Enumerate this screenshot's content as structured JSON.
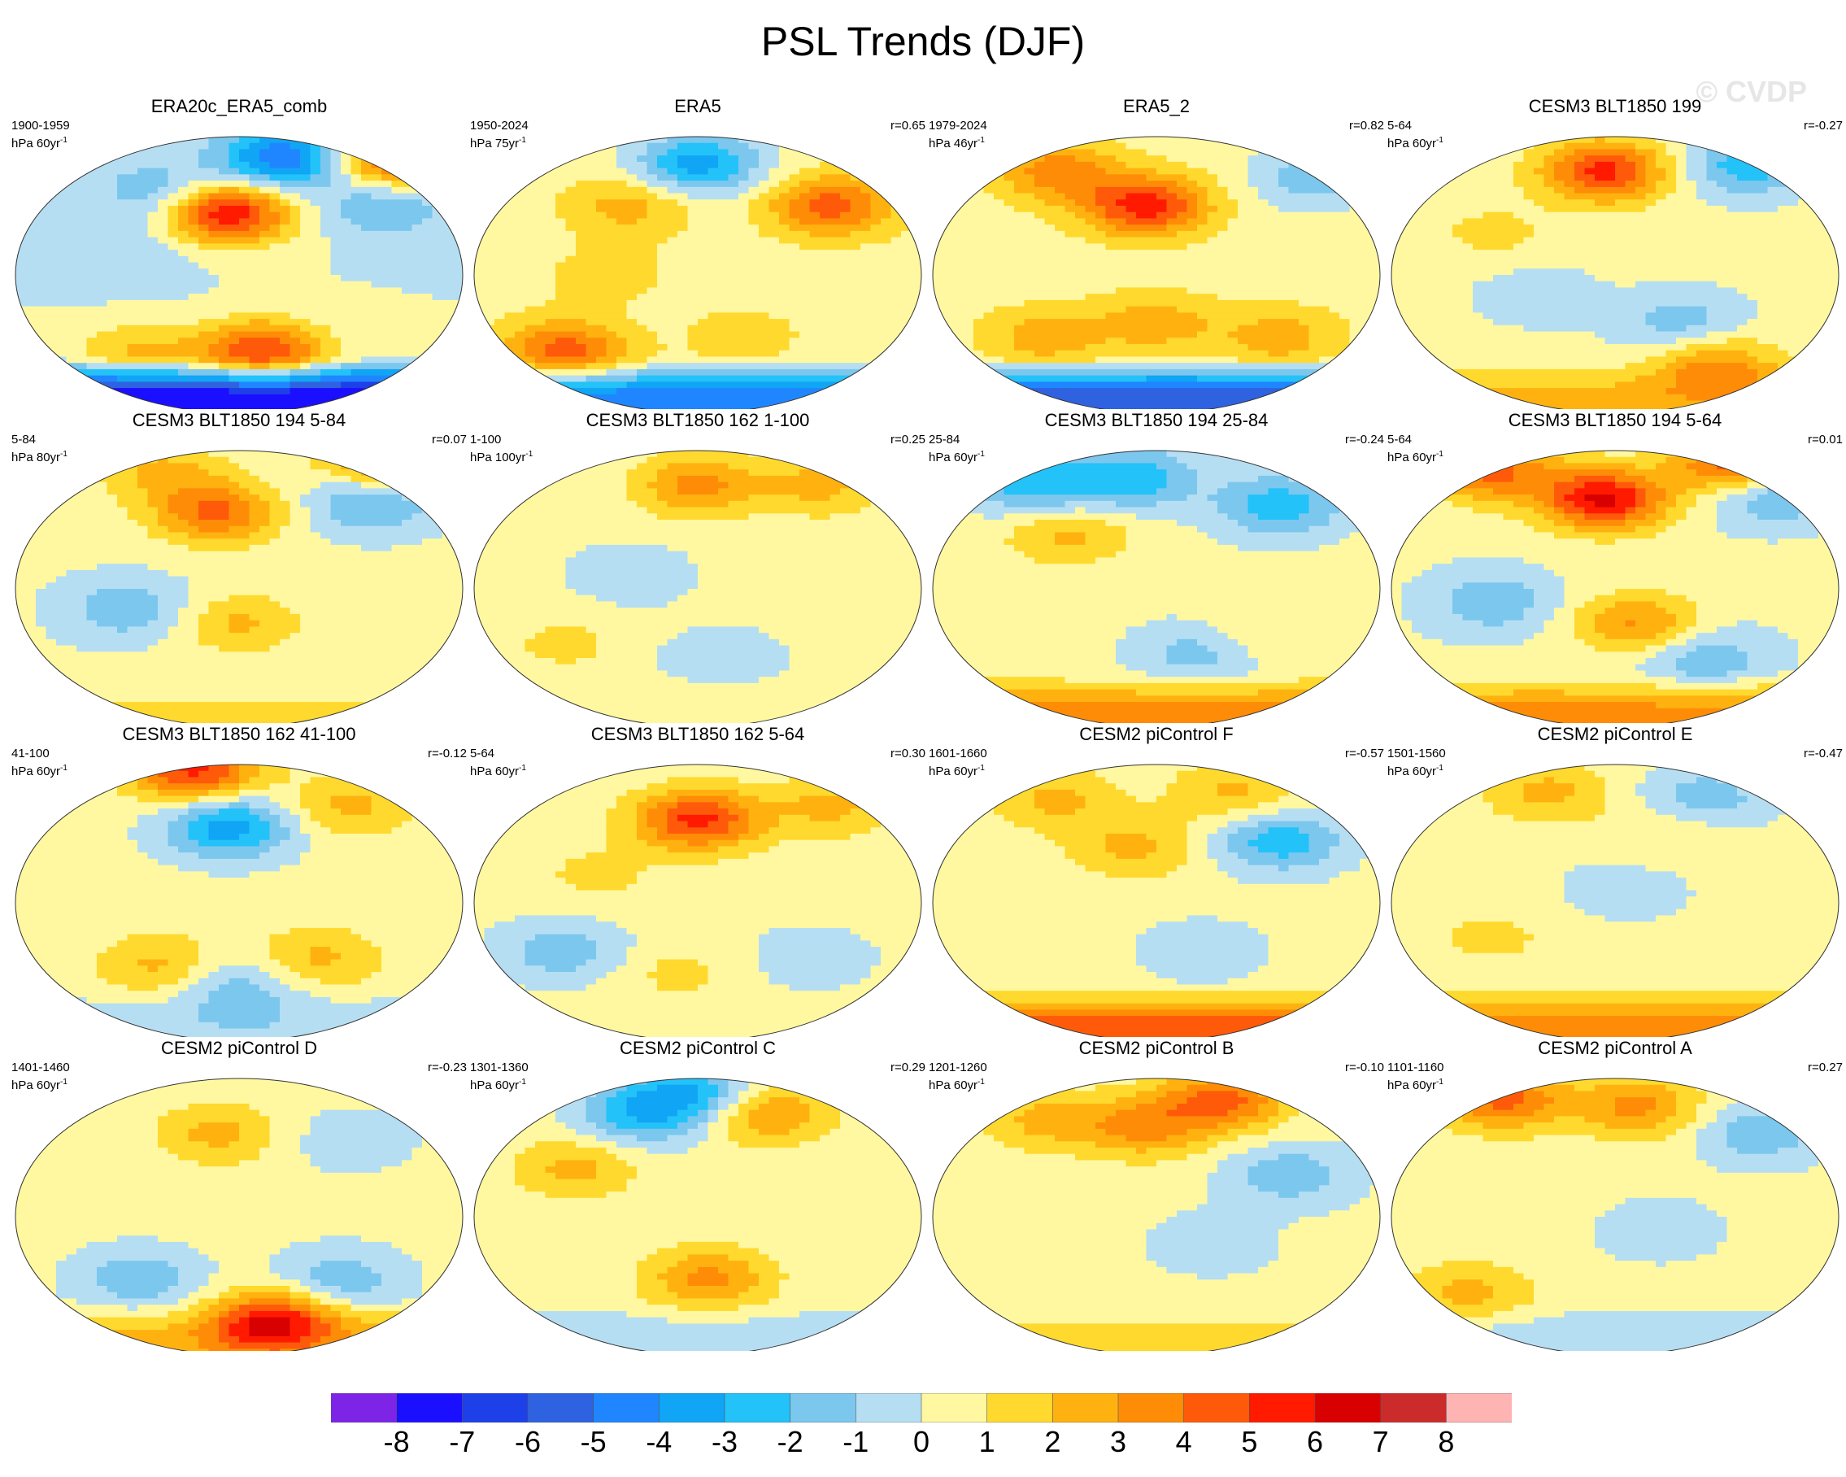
{
  "title": "PSL Trends (DJF)",
  "watermark": "© CVDP",
  "colorbar": {
    "colors": [
      "#7d24e6",
      "#1b0fff",
      "#1e40e8",
      "#2f62e0",
      "#1f86ff",
      "#11a5f5",
      "#23c2f9",
      "#7cc7ee",
      "#b6def3",
      "#fff8a0",
      "#ffd92e",
      "#ffb20f",
      "#ff8c06",
      "#ff5a09",
      "#ff1a00",
      "#d80000",
      "#cc2b2b",
      "#ffb4b4"
    ],
    "ticks": [
      "-8",
      "-7",
      "-6",
      "-5",
      "-4",
      "-3",
      "-2",
      "-1",
      "0",
      "1",
      "2",
      "3",
      "4",
      "5",
      "6",
      "7",
      "8"
    ]
  },
  "chart_data": {
    "type": "heatmap",
    "title": "PSL Trends (DJF)",
    "variable": "PSL",
    "season": "DJF",
    "colorbar_levels": [
      -8,
      -7,
      -6,
      -5,
      -4,
      -3,
      -2,
      -1,
      0,
      1,
      2,
      3,
      4,
      5,
      6,
      7,
      8
    ],
    "panels": [
      {
        "name": "ERA20c_ERA5_comb",
        "period": "1900-1959",
        "units": "hPa 60yr",
        "r": ""
      },
      {
        "name": "ERA5",
        "period": "1950-2024",
        "units": "hPa 75yr",
        "r": "r=0.65"
      },
      {
        "name": "ERA5_2",
        "period": "1979-2024",
        "units": "hPa 46yr",
        "r": "r=0.82"
      },
      {
        "name": "CESM3 BLT1850 199",
        "period": "5-64",
        "units": "hPa 60yr",
        "r": "r=-0.27"
      },
      {
        "name": "CESM3 BLT1850 194 5-84",
        "period": "5-84",
        "units": "hPa 80yr",
        "r": "r=0.07"
      },
      {
        "name": "CESM3 BLT1850 162 1-100",
        "period": "1-100",
        "units": "hPa 100yr",
        "r": "r=0.25"
      },
      {
        "name": "CESM3 BLT1850 194 25-84",
        "period": "25-84",
        "units": "hPa 60yr",
        "r": "r=-0.24"
      },
      {
        "name": "CESM3 BLT1850 194 5-64",
        "period": "5-64",
        "units": "hPa 60yr",
        "r": "r=0.01"
      },
      {
        "name": "CESM3 BLT1850 162 41-100",
        "period": "41-100",
        "units": "hPa 60yr",
        "r": "r=-0.12"
      },
      {
        "name": "CESM3 BLT1850 162 5-64",
        "period": "5-64",
        "units": "hPa 60yr",
        "r": "r=0.30"
      },
      {
        "name": "CESM2 piControl F",
        "period": "1601-1660",
        "units": "hPa 60yr",
        "r": "r=-0.57"
      },
      {
        "name": "CESM2 piControl E",
        "period": "1501-1560",
        "units": "hPa 60yr",
        "r": "r=-0.47"
      },
      {
        "name": "CESM2 piControl D",
        "period": "1401-1460",
        "units": "hPa 60yr",
        "r": "r=-0.23"
      },
      {
        "name": "CESM2 piControl C",
        "period": "1301-1360",
        "units": "hPa 60yr",
        "r": "r=0.29"
      },
      {
        "name": "CESM2 piControl B",
        "period": "1201-1260",
        "units": "hPa 60yr",
        "r": "r=-0.10"
      },
      {
        "name": "CESM2 piControl A",
        "period": "1101-1160",
        "units": "hPa 60yr",
        "r": "r=0.27"
      }
    ]
  },
  "panel_fields": [
    {
      "bg": 0,
      "south": -8,
      "blobs": [
        [
          -0.35,
          0.6,
          -2
        ],
        [
          0.2,
          0.85,
          -5
        ],
        [
          0.7,
          0.85,
          5
        ],
        [
          -0.05,
          0.45,
          6
        ],
        [
          0.1,
          -0.55,
          5
        ],
        [
          -0.45,
          -0.55,
          2
        ],
        [
          0.65,
          0.5,
          -2
        ],
        [
          -0.5,
          0.1,
          -1
        ]
      ]
    },
    {
      "bg": 0.5,
      "south": -5,
      "blobs": [
        [
          -0.3,
          0.5,
          2
        ],
        [
          0.0,
          0.8,
          -4
        ],
        [
          0.6,
          0.5,
          4
        ],
        [
          -0.6,
          -0.55,
          4
        ],
        [
          0.2,
          -0.45,
          1
        ],
        [
          -0.4,
          0.0,
          1
        ]
      ]
    },
    {
      "bg": 0.5,
      "south": -6,
      "blobs": [
        [
          -0.45,
          0.75,
          3
        ],
        [
          -0.05,
          0.5,
          5
        ],
        [
          0.7,
          0.7,
          -2
        ],
        [
          0.0,
          -0.35,
          2
        ],
        [
          -0.5,
          -0.45,
          2
        ],
        [
          0.55,
          -0.45,
          2
        ]
      ]
    },
    {
      "bg": 0.3,
      "south": 2,
      "blobs": [
        [
          0.6,
          0.8,
          -3
        ],
        [
          -0.05,
          0.75,
          5
        ],
        [
          -0.35,
          -0.15,
          -1
        ],
        [
          0.3,
          -0.35,
          -2
        ],
        [
          0.45,
          -0.65,
          3
        ],
        [
          -0.55,
          0.3,
          1
        ]
      ]
    },
    {
      "bg": 0.2,
      "south": 1,
      "blobs": [
        [
          -0.1,
          0.55,
          4
        ],
        [
          0.6,
          0.65,
          -3
        ],
        [
          0.65,
          0.9,
          4
        ],
        [
          -0.5,
          -0.15,
          -2
        ],
        [
          0.0,
          -0.25,
          2
        ],
        [
          -0.35,
          0.85,
          2
        ]
      ]
    },
    {
      "bg": 0.3,
      "south": 0.5,
      "blobs": [
        [
          0.0,
          0.75,
          3
        ],
        [
          0.55,
          0.75,
          2
        ],
        [
          -0.3,
          0.1,
          -1
        ],
        [
          0.1,
          -0.5,
          -1
        ],
        [
          -0.6,
          -0.4,
          1
        ]
      ]
    },
    {
      "bg": 0.3,
      "south": 3,
      "blobs": [
        [
          -0.55,
          0.75,
          -3
        ],
        [
          -0.1,
          0.8,
          -3
        ],
        [
          0.55,
          0.6,
          -3
        ],
        [
          -0.4,
          0.4,
          2
        ],
        [
          0.2,
          -0.45,
          -2
        ],
        [
          0.4,
          -0.35,
          1
        ]
      ]
    },
    {
      "bg": 0.2,
      "south": 3,
      "blobs": [
        [
          -0.55,
          0.85,
          4
        ],
        [
          -0.05,
          0.65,
          6
        ],
        [
          0.7,
          0.7,
          -3
        ],
        [
          0.55,
          0.9,
          5
        ],
        [
          -0.55,
          -0.1,
          -2
        ],
        [
          0.1,
          -0.25,
          3
        ],
        [
          0.4,
          -0.5,
          -2
        ]
      ]
    },
    {
      "bg": 0.3,
      "south": -1,
      "blobs": [
        [
          -0.2,
          0.95,
          5
        ],
        [
          -0.05,
          0.55,
          -4
        ],
        [
          0.5,
          0.7,
          2
        ],
        [
          -0.35,
          -0.45,
          2
        ],
        [
          0.0,
          -0.6,
          -2
        ],
        [
          0.35,
          -0.4,
          2
        ]
      ]
    },
    {
      "bg": 0.3,
      "south": 0.5,
      "blobs": [
        [
          0.0,
          0.6,
          5
        ],
        [
          0.6,
          0.7,
          2
        ],
        [
          -0.6,
          -0.35,
          -2
        ],
        [
          -0.1,
          -0.5,
          1
        ],
        [
          0.5,
          -0.4,
          -1
        ],
        [
          -0.45,
          0.2,
          1
        ]
      ]
    },
    {
      "bg": 0.3,
      "south": 4,
      "blobs": [
        [
          0.55,
          0.45,
          -3
        ],
        [
          -0.45,
          0.75,
          2
        ],
        [
          0.35,
          0.8,
          2
        ],
        [
          -0.1,
          0.4,
          2
        ],
        [
          0.2,
          -0.35,
          -1
        ]
      ]
    },
    {
      "bg": 0.3,
      "south": 3,
      "blobs": [
        [
          -0.3,
          0.8,
          2
        ],
        [
          0.4,
          0.75,
          -2
        ],
        [
          0.25,
          0.5,
          1
        ],
        [
          -0.55,
          -0.25,
          1
        ],
        [
          0.05,
          0.1,
          -1
        ]
      ]
    },
    {
      "bg": 0.3,
      "south": 2,
      "blobs": [
        [
          0.15,
          -0.75,
          5
        ],
        [
          -0.45,
          -0.45,
          -2
        ],
        [
          0.45,
          -0.45,
          -2
        ],
        [
          -0.1,
          0.6,
          2
        ],
        [
          0.5,
          0.55,
          -1
        ]
      ]
    },
    {
      "bg": 0.3,
      "south": -1,
      "blobs": [
        [
          -0.25,
          0.75,
          -3
        ],
        [
          0.0,
          0.9,
          -3
        ],
        [
          0.3,
          0.75,
          3
        ],
        [
          0.05,
          -0.45,
          3
        ],
        [
          -0.55,
          0.35,
          2
        ]
      ]
    },
    {
      "bg": 0.3,
      "south": 1,
      "blobs": [
        [
          0.3,
          0.85,
          4
        ],
        [
          -0.5,
          0.7,
          2
        ],
        [
          -0.05,
          0.65,
          3
        ],
        [
          0.6,
          0.3,
          -2
        ],
        [
          0.25,
          -0.2,
          -1
        ]
      ]
    },
    {
      "bg": 0.3,
      "south": -1,
      "blobs": [
        [
          -0.5,
          0.85,
          4
        ],
        [
          0.1,
          0.8,
          3
        ],
        [
          0.65,
          0.6,
          -2
        ],
        [
          -0.65,
          -0.55,
          2
        ],
        [
          0.2,
          -0.1,
          -1
        ]
      ]
    }
  ]
}
